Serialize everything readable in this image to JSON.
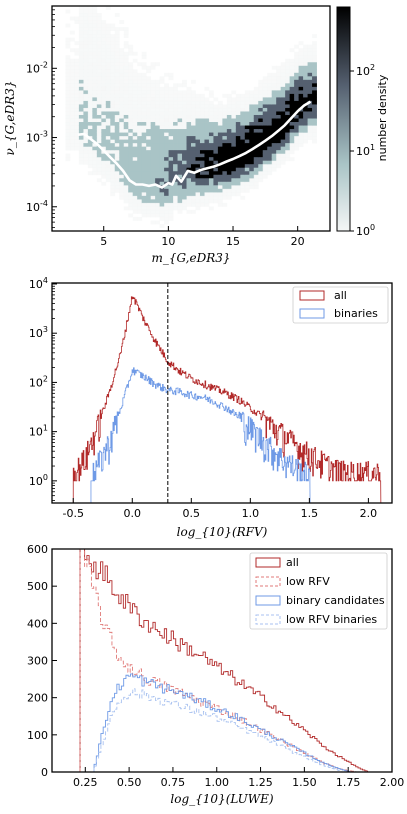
{
  "chart_data": [
    {
      "type": "heatmap",
      "xlabel": "m_{G,eDR3}",
      "ylabel": "ν_{G,eDR3}",
      "xlim": [
        1,
        22.5
      ],
      "ylim_log10": [
        -4.35,
        -1.1
      ],
      "y_scale": "log",
      "x_ticks": [
        5,
        10,
        15,
        20
      ],
      "y_ticks": [
        {
          "exp": "-4",
          "v": 0.0001
        },
        {
          "exp": "-3",
          "v": 0.001
        },
        {
          "exp": "-2",
          "v": 0.01
        }
      ],
      "colorbar": {
        "label": "number density",
        "scale": "log",
        "ticks": [
          {
            "exp": "0",
            "v": 1
          },
          {
            "exp": "1",
            "v": 10
          },
          {
            "exp": "2",
            "v": 100
          }
        ],
        "range_log10": [
          0,
          2.8
        ],
        "colors": [
          "#f4f6f6",
          "#a9c4c6",
          "#556070",
          "#000000"
        ]
      },
      "median_curve": {
        "color": "#ffffff",
        "x": [
          3.0,
          3.5,
          4.0,
          4.5,
          5.0,
          5.5,
          6.0,
          6.5,
          7.0,
          7.5,
          8.0,
          8.5,
          9.0,
          9.5,
          10.0,
          10.3,
          10.6,
          11.0,
          11.5,
          12.0,
          12.5,
          13.0,
          13.5,
          14.0,
          14.5,
          15.0,
          15.5,
          16.0,
          16.5,
          17.0,
          17.5,
          18.0,
          18.5,
          19.0,
          19.5,
          20.0,
          20.5,
          21.0
        ],
        "y": [
          0.0011,
          0.00112,
          0.00095,
          0.0008,
          0.00065,
          0.00052,
          0.00042,
          0.00033,
          0.00024,
          0.00021,
          0.00021,
          0.0002,
          0.00021,
          0.00019,
          0.00022,
          0.00021,
          0.00028,
          0.00023,
          0.00033,
          0.00031,
          0.00034,
          0.00036,
          0.00038,
          0.00041,
          0.00045,
          0.00049,
          0.00054,
          0.0006,
          0.00068,
          0.00078,
          0.0009,
          0.00105,
          0.00125,
          0.0015,
          0.0019,
          0.0024,
          0.0029,
          0.0033
        ]
      }
    },
    {
      "type": "histogram",
      "xlabel": "log_{10}(RFV)",
      "xlim": [
        -0.68,
        2.2
      ],
      "y_scale": "log",
      "ylim_log10": [
        -0.45,
        4.02
      ],
      "x_ticks": [
        "-0.5",
        "0.0",
        "0.5",
        "1.0",
        "1.5",
        "2.0"
      ],
      "y_ticks": [
        {
          "exp": "0",
          "v": 1
        },
        {
          "exp": "1",
          "v": 10
        },
        {
          "exp": "2",
          "v": 100
        },
        {
          "exp": "3",
          "v": 1000
        },
        {
          "exp": "4",
          "v": 10000
        }
      ],
      "vline_x": 0.301,
      "legend": {
        "position": "top-right"
      },
      "series": [
        {
          "name": "all",
          "color": "#b22a2a",
          "x": [
            -0.5,
            -0.4,
            -0.3,
            -0.2,
            -0.1,
            0.0,
            0.1,
            0.2,
            0.3,
            0.4,
            0.5,
            0.6,
            0.7,
            0.8,
            0.9,
            1.0,
            1.1,
            1.2,
            1.3,
            1.4,
            1.5,
            1.6,
            1.7,
            1.8,
            2.1
          ],
          "y": [
            1.3,
            3,
            12,
            60,
            400,
            6000,
            1800,
            650,
            270,
            170,
            120,
            95,
            75,
            60,
            45,
            30,
            20,
            12,
            8,
            5,
            3.5,
            2.5,
            1.8,
            1.5,
            1.5
          ]
        },
        {
          "name": "binaries",
          "color": "#6f9ae6",
          "x": [
            -0.35,
            -0.3,
            -0.2,
            -0.1,
            0.0,
            0.1,
            0.2,
            0.3,
            0.4,
            0.5,
            0.6,
            0.7,
            0.8,
            0.9,
            1.0,
            1.1,
            1.2,
            1.3,
            1.4,
            1.5
          ],
          "y": [
            1.2,
            2,
            6,
            30,
            180,
            130,
            90,
            70,
            65,
            55,
            50,
            40,
            30,
            20,
            12,
            7,
            4,
            2.5,
            1.8,
            1.3
          ]
        }
      ]
    },
    {
      "type": "histogram",
      "xlabel": "log_{10}(LUWE)",
      "xlim": [
        0.06,
        2.0
      ],
      "ylim": [
        0,
        600
      ],
      "x_ticks": [
        "0.25",
        "0.50",
        "0.75",
        "1.00",
        "1.25",
        "1.50",
        "1.75",
        "2.00"
      ],
      "y_ticks": [
        "0",
        "100",
        "200",
        "300",
        "400",
        "500",
        "600"
      ],
      "legend": {
        "position": "top-right"
      },
      "series": [
        {
          "name": "all",
          "color": "#b22a2a",
          "dash": "",
          "x": [
            0.22,
            0.3,
            0.4,
            0.5,
            0.6,
            0.7,
            0.8,
            0.9,
            1.0,
            1.1,
            1.2,
            1.3,
            1.4,
            1.5,
            1.6,
            1.7,
            1.8,
            1.85
          ],
          "y": [
            600,
            560,
            500,
            440,
            400,
            370,
            340,
            315,
            280,
            250,
            215,
            185,
            145,
            110,
            70,
            40,
            12,
            2
          ]
        },
        {
          "name": "low RFV",
          "color": "#e07a78",
          "dash": "4,2",
          "x": [
            0.22,
            0.3,
            0.35,
            0.4,
            0.45,
            0.5,
            0.6,
            0.7,
            0.8,
            0.9,
            1.0,
            1.1,
            1.2,
            1.3,
            1.4,
            1.5,
            1.6,
            1.7,
            1.78
          ],
          "y": [
            600,
            480,
            400,
            340,
            300,
            280,
            250,
            230,
            210,
            190,
            170,
            150,
            125,
            100,
            75,
            50,
            25,
            8,
            1
          ]
        },
        {
          "name": "binary candidates",
          "color": "#6f9ae6",
          "dash": "",
          "x": [
            0.3,
            0.35,
            0.4,
            0.45,
            0.5,
            0.6,
            0.7,
            0.8,
            0.9,
            1.0,
            1.1,
            1.2,
            1.3,
            1.4,
            1.5,
            1.6,
            1.7,
            1.75
          ],
          "y": [
            20,
            120,
            200,
            240,
            260,
            240,
            225,
            210,
            190,
            170,
            150,
            125,
            100,
            75,
            50,
            25,
            8,
            1
          ]
        },
        {
          "name": "low RFV binaries",
          "color": "#a9c2f0",
          "dash": "4,2",
          "x": [
            0.3,
            0.35,
            0.4,
            0.45,
            0.5,
            0.6,
            0.7,
            0.8,
            0.9,
            1.0,
            1.1,
            1.2,
            1.3,
            1.4,
            1.5,
            1.6,
            1.7
          ],
          "y": [
            15,
            90,
            160,
            200,
            215,
            205,
            190,
            175,
            160,
            145,
            125,
            105,
            85,
            60,
            40,
            18,
            3
          ]
        }
      ]
    }
  ]
}
